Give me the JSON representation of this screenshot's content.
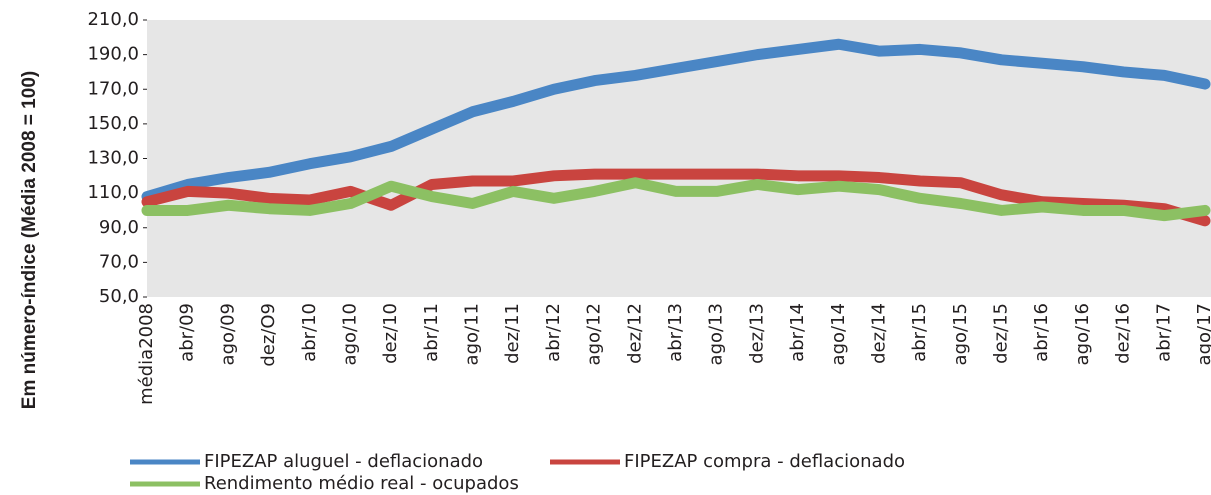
{
  "chart_data": {
    "type": "line",
    "y_label": "Em número-índice (Média 2008 = 100)",
    "categories": [
      "média2008",
      "abr/09",
      "ago/09",
      "dez/O9",
      "abr/10",
      "ago/10",
      "dez/10",
      "abr/11",
      "ago/11",
      "dez/11",
      "abr/12",
      "ago/12",
      "dez/12",
      "abr/13",
      "ago/13",
      "dez/13",
      "abr/14",
      "ago/14",
      "dez/14",
      "abr/15",
      "ago/15",
      "dez/15",
      "abr/16",
      "ago/16",
      "dez/16",
      "abr/17",
      "ago/17"
    ],
    "series": [
      {
        "name": "FIPEZAP aluguel - deflacionado",
        "color": "#4a86c5",
        "values": [
          108,
          115,
          119,
          122,
          127,
          131,
          137,
          147,
          157,
          163,
          170,
          175,
          178,
          182,
          186,
          190,
          193,
          196,
          192,
          193,
          191,
          187,
          185,
          183,
          180,
          178,
          173
        ]
      },
      {
        "name": "FIPEZAP compra - deflacionado",
        "color": "#c9443f",
        "values": [
          105,
          111,
          110,
          107,
          106,
          111,
          103,
          115,
          117,
          117,
          120,
          121,
          121,
          121,
          121,
          121,
          120,
          120,
          119,
          117,
          116,
          109,
          105,
          104,
          103,
          101,
          94
        ]
      },
      {
        "name": "Rendimento médio real - ocupados",
        "color": "#8cc063",
        "values": [
          100,
          100,
          103,
          101,
          100,
          104,
          114,
          108,
          104,
          111,
          107,
          111,
          116,
          111,
          111,
          115,
          112,
          114,
          112,
          107,
          104,
          100,
          102,
          100,
          100,
          97,
          100
        ]
      }
    ],
    "ylim": [
      50,
      210
    ],
    "yticks": [
      {
        "value": 50,
        "label": "50,0"
      },
      {
        "value": 70,
        "label": "70,0"
      },
      {
        "value": 90,
        "label": "90,0"
      },
      {
        "value": 110,
        "label": "110,0"
      },
      {
        "value": 130,
        "label": "130,0"
      },
      {
        "value": 150,
        "label": "150,0"
      },
      {
        "value": 170,
        "label": "170,0"
      },
      {
        "value": 190,
        "label": "190,0"
      },
      {
        "value": 210,
        "label": "210,0"
      }
    ],
    "plot_background": "#e6e6e6"
  }
}
